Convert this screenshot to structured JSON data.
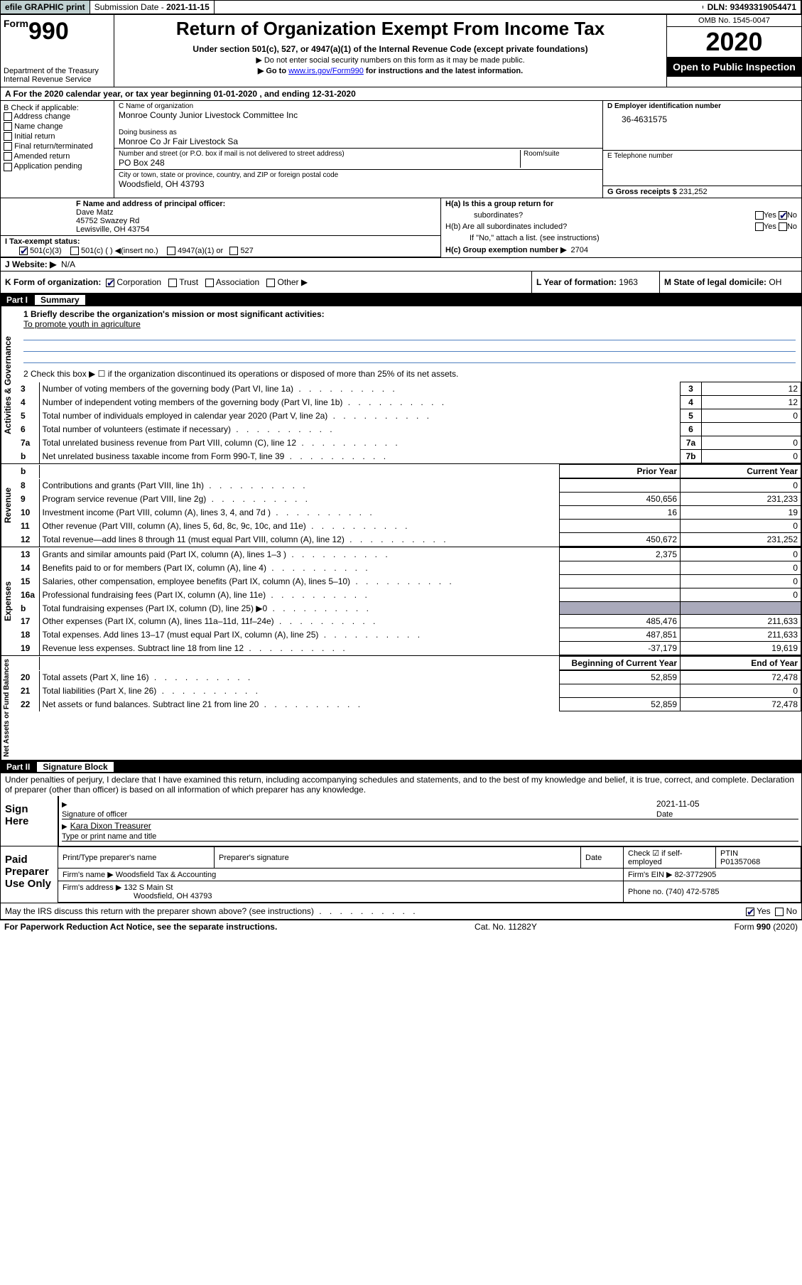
{
  "top_bar": {
    "efile": "efile GRAPHIC print",
    "submission_label": "Submission Date - ",
    "submission_date": "2021-11-15",
    "dln_label": "DLN: ",
    "dln": "93493319054471"
  },
  "header": {
    "form_word": "Form",
    "form_number": "990",
    "dept": "Department of the Treasury\nInternal Revenue Service",
    "title": "Return of Organization Exempt From Income Tax",
    "subtitle": "Under section 501(c), 527, or 4947(a)(1) of the Internal Revenue Code (except private foundations)",
    "note1": "▶ Do not enter social security numbers on this form as it may be made public.",
    "note2_prefix": "▶ Go to ",
    "note2_link": "www.irs.gov/Form990",
    "note2_suffix": " for instructions and the latest information.",
    "omb": "OMB No. 1545-0047",
    "year": "2020",
    "open": "Open to Public Inspection"
  },
  "period": {
    "line_a": "A  For the 2020 calendar year, or tax year beginning 01-01-2020    , and ending 12-31-2020"
  },
  "box_b": {
    "title": "B Check if applicable:",
    "opts": [
      "Address change",
      "Name change",
      "Initial return",
      "Final return/terminated",
      "Amended return",
      "Application pending"
    ]
  },
  "box_c": {
    "name_label": "C Name of organization",
    "name": "Monroe County Junior Livestock Committee Inc",
    "dba_label": "Doing business as",
    "dba": "Monroe Co Jr Fair Livestock Sa",
    "street_label": "Number and street (or P.O. box if mail is not delivered to street address)",
    "room_label": "Room/suite",
    "street": "PO Box 248",
    "city_label": "City or town, state or province, country, and ZIP or foreign postal code",
    "city": "Woodsfield, OH  43793"
  },
  "box_d": {
    "label": "D Employer identification number",
    "val": "36-4631575"
  },
  "box_e": {
    "label": "E Telephone number",
    "val": ""
  },
  "box_g": {
    "label": "G Gross receipts $ ",
    "val": "231,252"
  },
  "box_f": {
    "label": "F  Name and address of principal officer:",
    "name": "Dave Matz",
    "addr1": "45752 Swazey Rd",
    "addr2": "Lewisville, OH  43754"
  },
  "box_h": {
    "a_label": "H(a)  Is this a group return for",
    "a_sub": "subordinates?",
    "b_label": "H(b)  Are all subordinates included?",
    "if_no": "If \"No,\" attach a list. (see instructions)",
    "c_label": "H(c)  Group exemption number ▶",
    "c_val": "2704",
    "yes": "Yes",
    "no": "No"
  },
  "box_i": {
    "label": "I  Tax-exempt status:",
    "opts": {
      "501c3": "501(c)(3)",
      "501c": "501(c) (  ) ◀(insert no.)",
      "4947": "4947(a)(1) or",
      "527": "527"
    }
  },
  "box_j": {
    "label": "J  Website: ▶",
    "val": "N/A"
  },
  "box_k": {
    "label": "K Form of organization:",
    "corp": "Corporation",
    "trust": "Trust",
    "assoc": "Association",
    "other": "Other ▶"
  },
  "box_l": {
    "label": "L Year of formation: ",
    "val": "1963"
  },
  "box_m": {
    "label": "M State of legal domicile: ",
    "val": "OH"
  },
  "part1": {
    "num": "Part I",
    "title": "Summary",
    "line1_label": "1  Briefly describe the organization's mission or most significant activities:",
    "line1_val": "To promote youth in agriculture",
    "line2": "2   Check this box ▶ ☐  if the organization discontinued its operations or disposed of more than 25% of its net assets.",
    "rows_a": [
      {
        "n": "3",
        "label": "Number of voting members of the governing body (Part VI, line 1a)",
        "box": "3",
        "val": "12"
      },
      {
        "n": "4",
        "label": "Number of independent voting members of the governing body (Part VI, line 1b)",
        "box": "4",
        "val": "12"
      },
      {
        "n": "5",
        "label": "Total number of individuals employed in calendar year 2020 (Part V, line 2a)",
        "box": "5",
        "val": "0"
      },
      {
        "n": "6",
        "label": "Total number of volunteers (estimate if necessary)",
        "box": "6",
        "val": ""
      },
      {
        "n": "7a",
        "label": "Total unrelated business revenue from Part VIII, column (C), line 12",
        "box": "7a",
        "val": "0"
      },
      {
        "n": "b",
        "label": "Net unrelated business taxable income from Form 990-T, line 39",
        "box": "7b",
        "val": "0"
      }
    ],
    "col_head_prior": "Prior Year",
    "col_head_cur": "Current Year",
    "rows_rev": [
      {
        "n": "8",
        "label": "Contributions and grants (Part VIII, line 1h)",
        "prior": "",
        "cur": "0"
      },
      {
        "n": "9",
        "label": "Program service revenue (Part VIII, line 2g)",
        "prior": "450,656",
        "cur": "231,233"
      },
      {
        "n": "10",
        "label": "Investment income (Part VIII, column (A), lines 3, 4, and 7d )",
        "prior": "16",
        "cur": "19"
      },
      {
        "n": "11",
        "label": "Other revenue (Part VIII, column (A), lines 5, 6d, 8c, 9c, 10c, and 11e)",
        "prior": "",
        "cur": "0"
      },
      {
        "n": "12",
        "label": "Total revenue—add lines 8 through 11 (must equal Part VIII, column (A), line 12)",
        "prior": "450,672",
        "cur": "231,252"
      }
    ],
    "rows_exp": [
      {
        "n": "13",
        "label": "Grants and similar amounts paid (Part IX, column (A), lines 1–3 )",
        "prior": "2,375",
        "cur": "0"
      },
      {
        "n": "14",
        "label": "Benefits paid to or for members (Part IX, column (A), line 4)",
        "prior": "",
        "cur": "0"
      },
      {
        "n": "15",
        "label": "Salaries, other compensation, employee benefits (Part IX, column (A), lines 5–10)",
        "prior": "",
        "cur": "0"
      },
      {
        "n": "16a",
        "label": "Professional fundraising fees (Part IX, column (A), line 11e)",
        "prior": "",
        "cur": "0"
      },
      {
        "n": "b",
        "label": "Total fundraising expenses (Part IX, column (D), line 25) ▶0",
        "prior": "SHADE",
        "cur": "SHADE"
      },
      {
        "n": "17",
        "label": "Other expenses (Part IX, column (A), lines 11a–11d, 11f–24e)",
        "prior": "485,476",
        "cur": "211,633"
      },
      {
        "n": "18",
        "label": "Total expenses. Add lines 13–17 (must equal Part IX, column (A), line 25)",
        "prior": "487,851",
        "cur": "211,633"
      },
      {
        "n": "19",
        "label": "Revenue less expenses. Subtract line 18 from line 12",
        "prior": "-37,179",
        "cur": "19,619"
      }
    ],
    "col_head_boy": "Beginning of Current Year",
    "col_head_eoy": "End of Year",
    "rows_na": [
      {
        "n": "20",
        "label": "Total assets (Part X, line 16)",
        "prior": "52,859",
        "cur": "72,478"
      },
      {
        "n": "21",
        "label": "Total liabilities (Part X, line 26)",
        "prior": "",
        "cur": "0"
      },
      {
        "n": "22",
        "label": "Net assets or fund balances. Subtract line 21 from line 20",
        "prior": "52,859",
        "cur": "72,478"
      }
    ],
    "side_activities": "Activities & Governance",
    "side_revenue": "Revenue",
    "side_expenses": "Expenses",
    "side_netassets": "Net Assets or Fund Balances"
  },
  "part2": {
    "num": "Part II",
    "title": "Signature Block",
    "perjury": "Under penalties of perjury, I declare that I have examined this return, including accompanying schedules and statements, and to the best of my knowledge and belief, it is true, correct, and complete. Declaration of preparer (other than officer) is based on all information of which preparer has any knowledge.",
    "sign_here": "Sign Here",
    "sig_officer": "Signature of officer",
    "date_label": "Date",
    "date_val": "2021-11-05",
    "name_title": "Kara Dixon  Treasurer",
    "type_label": "Type or print name and title",
    "paid": "Paid Preparer Use Only",
    "prep_name_label": "Print/Type preparer's name",
    "prep_sig_label": "Preparer's signature",
    "check_label": "Check ☑ if self-employed",
    "ptin_label": "PTIN",
    "ptin_val": "P01357068",
    "firm_name_label": "Firm's name    ▶",
    "firm_name": "Woodsfield Tax & Accounting",
    "firm_ein_label": "Firm's EIN ▶",
    "firm_ein": "82-3772905",
    "firm_addr_label": "Firm's address ▶",
    "firm_addr1": "132 S Main St",
    "firm_addr2": "Woodsfield, OH  43793",
    "phone_label": "Phone no.",
    "phone": "(740) 472-5785",
    "discuss": "May the IRS discuss this return with the preparer shown above? (see instructions)",
    "yes": "Yes",
    "no": "No"
  },
  "footer": {
    "paperwork": "For Paperwork Reduction Act Notice, see the separate instructions.",
    "cat": "Cat. No. 11282Y",
    "form": "Form 990 (2020)"
  }
}
